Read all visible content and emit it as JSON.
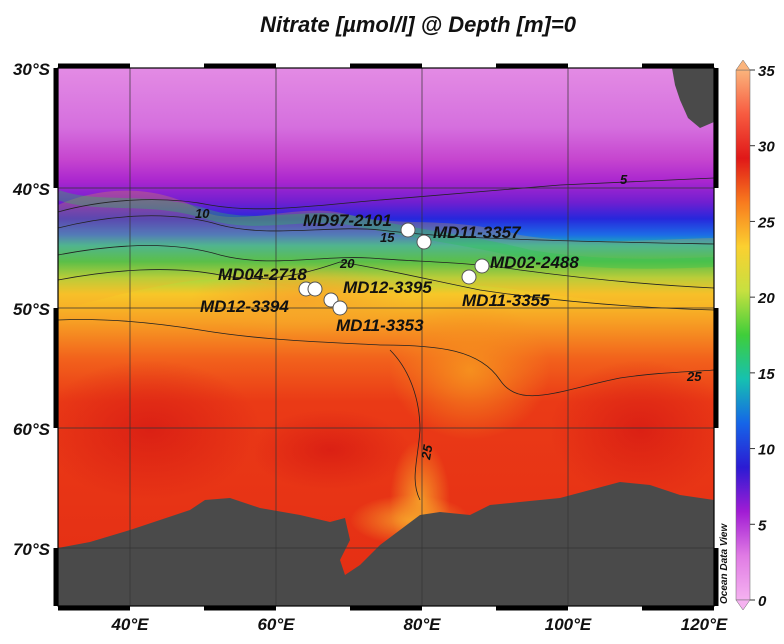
{
  "title": "Nitrate [µmol/l] @ Depth [m]=0",
  "watermark": "Ocean Data View",
  "lat_labels": [
    "30°S",
    "40°S",
    "50°S",
    "60°S",
    "70°S"
  ],
  "lon_labels": [
    "40°E",
    "60°E",
    "80°E",
    "100°E",
    "120°E"
  ],
  "colorbar": {
    "ticks": [
      "35",
      "30",
      "25",
      "20",
      "15",
      "10",
      "5",
      "0"
    ],
    "stops": [
      "#fbb47c",
      "#f75b40",
      "#e01818",
      "#f87b1e",
      "#fbd030",
      "#c7e040",
      "#3fce3a",
      "#16c1b0",
      "#1565e8",
      "#2b1bd3",
      "#a11cd4",
      "#e07be4",
      "#f5b2f0"
    ]
  },
  "contour_labels": [
    "5",
    "10",
    "15",
    "20",
    "25",
    "25"
  ],
  "stations": [
    {
      "name": "MD97-2101"
    },
    {
      "name": "MD11-3357"
    },
    {
      "name": "MD02-2488"
    },
    {
      "name": "MD11-3355"
    },
    {
      "name": "MD04-2718"
    },
    {
      "name": "MD12-3395"
    },
    {
      "name": "MD12-3394"
    },
    {
      "name": "MD11-3353"
    }
  ],
  "colors": {
    "land": "#4a4a4a",
    "frame": "#000000",
    "background": "#ffffff"
  }
}
